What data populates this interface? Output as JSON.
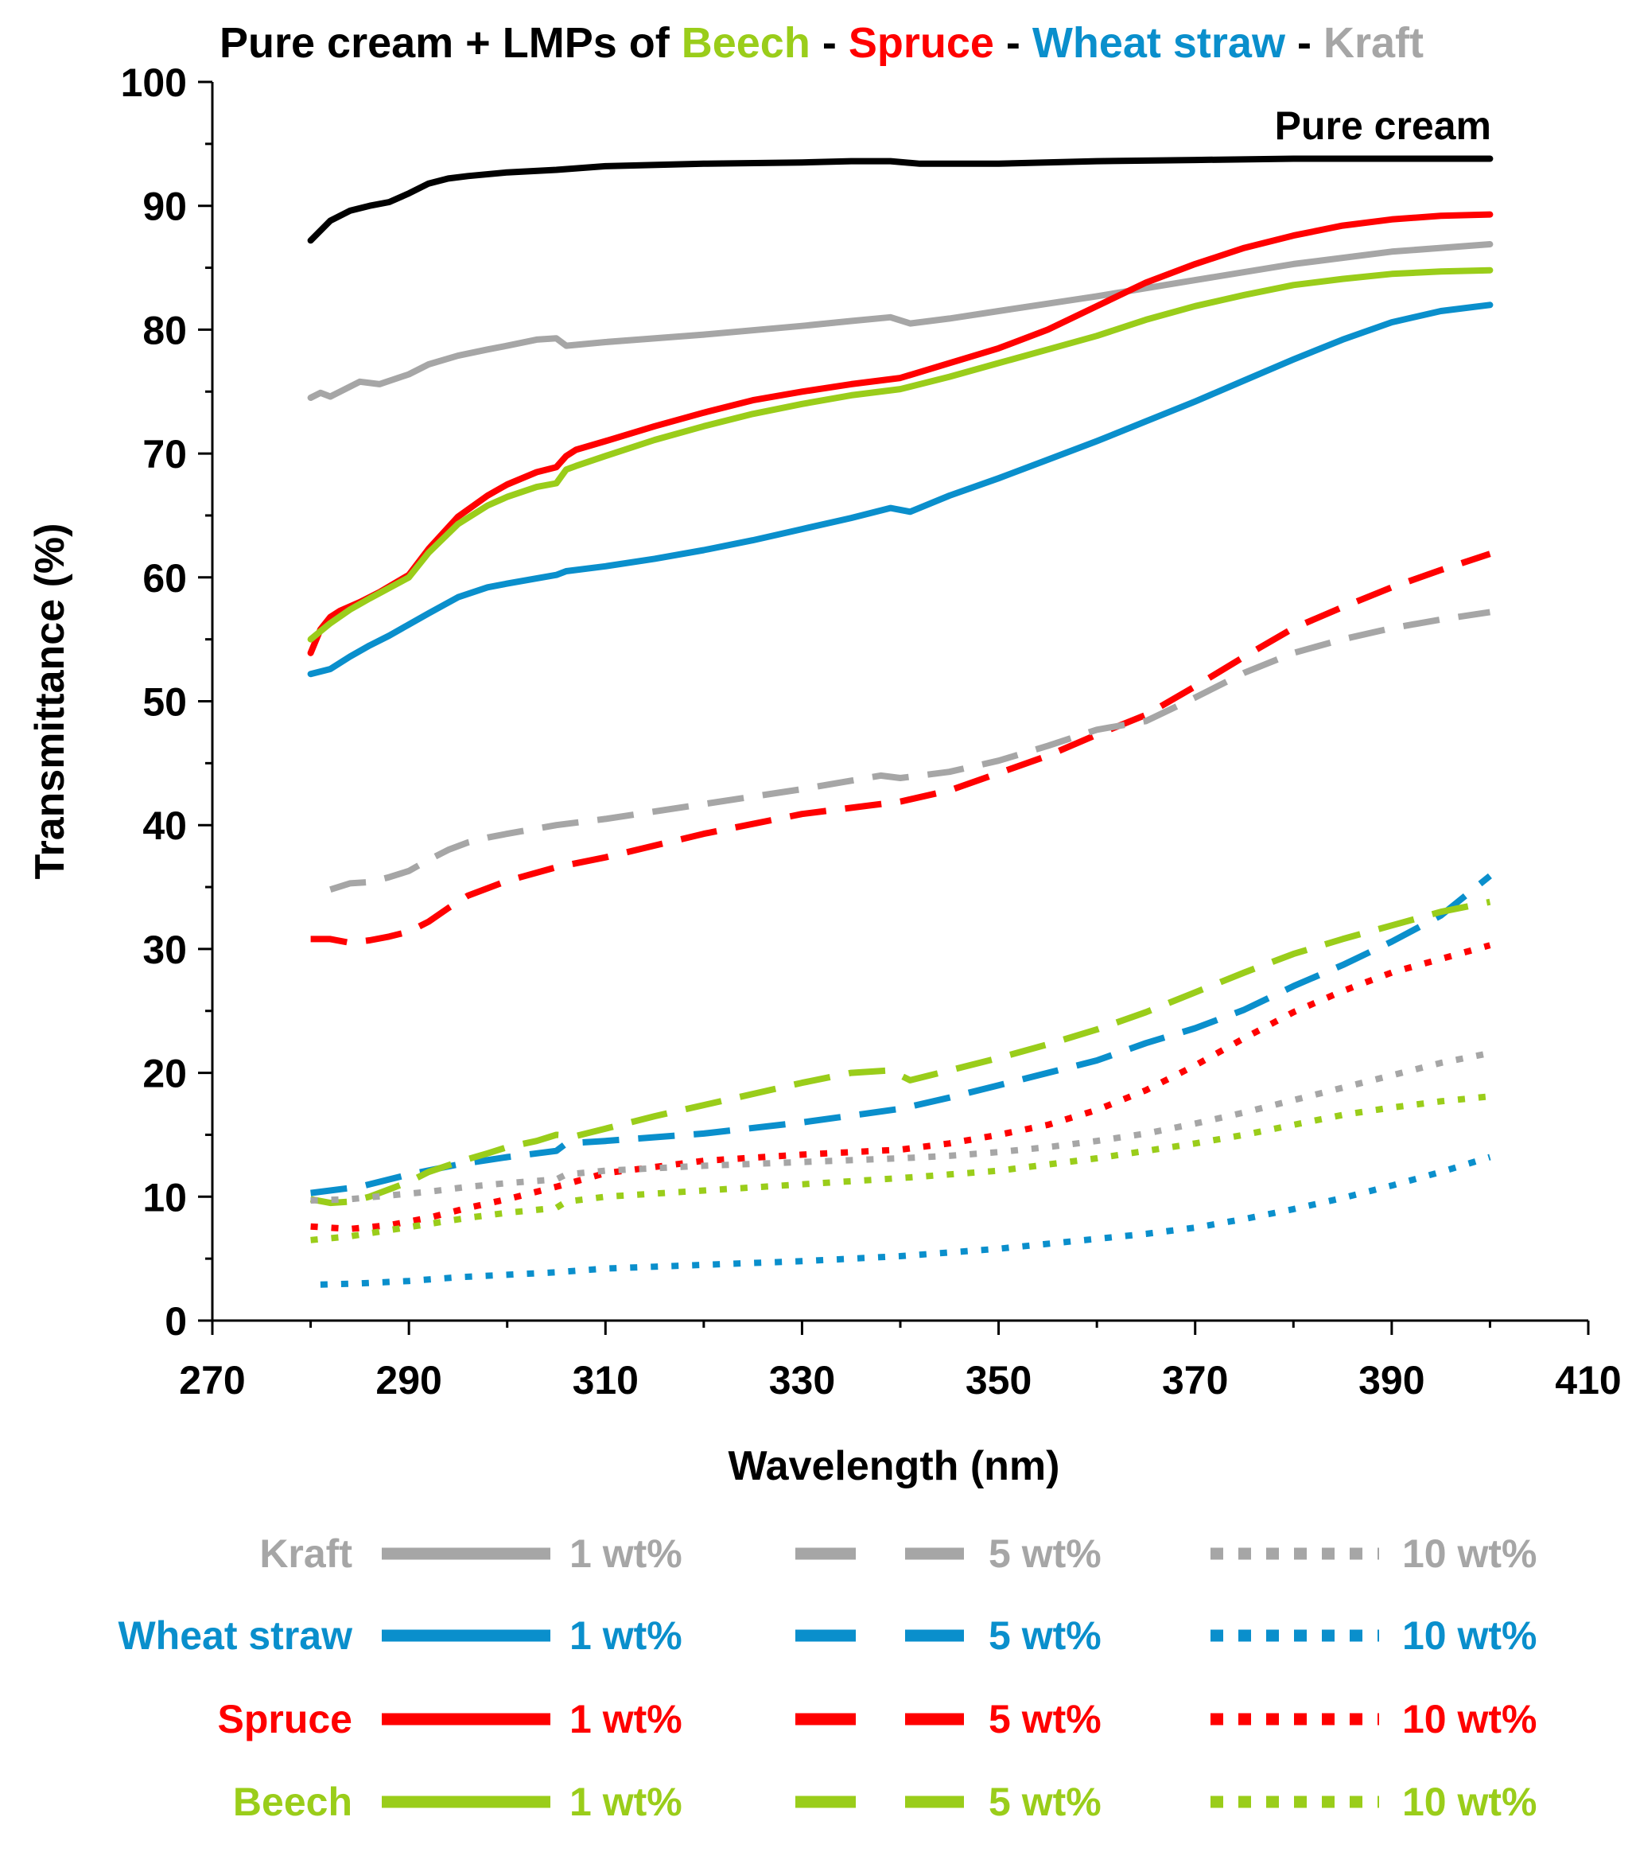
{
  "chart_data": {
    "type": "line",
    "title": {
      "prefix": "Pure cream + LMPs of",
      "sep": "-",
      "segments": [
        {
          "text": "Beech",
          "color": "#9ACD1A"
        },
        {
          "text": "Spruce",
          "color": "#FF0000"
        },
        {
          "text": "Wheat straw",
          "color": "#0A8FCC"
        },
        {
          "text": "Kraft",
          "color": "#A6A6A6"
        }
      ]
    },
    "xlabel": "Wavelength (nm)",
    "ylabel": "Transmittance (%)",
    "xlim": [
      270,
      410
    ],
    "ylim": [
      0,
      100
    ],
    "xticks": [
      270,
      290,
      310,
      330,
      350,
      370,
      390,
      410
    ],
    "yticks": [
      0,
      10,
      20,
      30,
      40,
      50,
      60,
      70,
      80,
      90,
      100
    ],
    "grid": false,
    "annotation": "Pure cream",
    "legend": {
      "placement": "bottom",
      "rows": [
        {
          "name": "Kraft",
          "color": "#A6A6A6"
        },
        {
          "name": "Wheat straw",
          "color": "#0A8FCC"
        },
        {
          "name": "Spruce",
          "color": "#FF0000"
        },
        {
          "name": "Beech",
          "color": "#9ACD1A"
        }
      ],
      "concentrations": [
        "1 wt%",
        "5 wt%",
        "10 wt%"
      ],
      "styles": [
        "solid",
        "dashed",
        "dotted"
      ]
    },
    "series": [
      {
        "name": "Pure cream",
        "color": "#000000",
        "style": "solid",
        "x": [
          280,
          282,
          284,
          286,
          288,
          290,
          292,
          294,
          296,
          300,
          305,
          310,
          320,
          330,
          335,
          339,
          342,
          350,
          360,
          370,
          380,
          390,
          400
        ],
        "y": [
          87.2,
          88.8,
          89.6,
          90.0,
          90.3,
          91.0,
          91.8,
          92.2,
          92.4,
          92.7,
          92.9,
          93.2,
          93.4,
          93.5,
          93.6,
          93.6,
          93.4,
          93.4,
          93.6,
          93.7,
          93.8,
          93.8,
          93.8
        ]
      },
      {
        "name": "Kraft 1 wt%",
        "color": "#A6A6A6",
        "style": "solid",
        "x": [
          280,
          281,
          282,
          283,
          285,
          287,
          290,
          292,
          295,
          298,
          300,
          303,
          305,
          306,
          310,
          320,
          330,
          335,
          339,
          341,
          345,
          350,
          360,
          370,
          380,
          390,
          400
        ],
        "y": [
          74.5,
          74.9,
          74.6,
          75.0,
          75.8,
          75.6,
          76.4,
          77.2,
          77.9,
          78.4,
          78.7,
          79.2,
          79.3,
          78.7,
          79.0,
          79.6,
          80.3,
          80.7,
          81.0,
          80.5,
          80.9,
          81.5,
          82.7,
          84.0,
          85.3,
          86.3,
          86.9
        ]
      },
      {
        "name": "Spruce 1 wt%",
        "color": "#FF0000",
        "style": "solid",
        "x": [
          280,
          281,
          282,
          283,
          285,
          287,
          290,
          292,
          295,
          298,
          300,
          303,
          305,
          306,
          307,
          310,
          315,
          320,
          325,
          330,
          335,
          340,
          345,
          350,
          355,
          360,
          365,
          370,
          375,
          380,
          385,
          390,
          395,
          400
        ],
        "y": [
          53.9,
          55.8,
          56.8,
          57.3,
          58.0,
          58.8,
          60.2,
          62.3,
          64.9,
          66.6,
          67.5,
          68.5,
          68.9,
          69.8,
          70.3,
          71.0,
          72.2,
          73.3,
          74.3,
          75.0,
          75.6,
          76.1,
          77.3,
          78.5,
          80.0,
          81.9,
          83.8,
          85.3,
          86.6,
          87.6,
          88.4,
          88.9,
          89.2,
          89.3
        ]
      },
      {
        "name": "Beech 1 wt%",
        "color": "#9ACD1A",
        "style": "solid",
        "x": [
          280,
          282,
          284,
          286,
          290,
          292,
          295,
          298,
          300,
          303,
          305,
          306,
          307,
          310,
          315,
          320,
          325,
          330,
          335,
          340,
          345,
          350,
          355,
          360,
          365,
          370,
          375,
          380,
          385,
          390,
          395,
          400
        ],
        "y": [
          55.0,
          56.3,
          57.4,
          58.3,
          60.0,
          62.0,
          64.3,
          65.8,
          66.5,
          67.3,
          67.6,
          68.7,
          69.0,
          69.8,
          71.1,
          72.2,
          73.2,
          74.0,
          74.7,
          75.2,
          76.2,
          77.3,
          78.4,
          79.5,
          80.8,
          81.9,
          82.8,
          83.6,
          84.1,
          84.5,
          84.7,
          84.8
        ]
      },
      {
        "name": "Wheat straw 1 wt%",
        "color": "#0A8FCC",
        "style": "solid",
        "x": [
          280,
          282,
          284,
          286,
          288,
          290,
          292,
          295,
          298,
          300,
          305,
          306,
          310,
          315,
          320,
          325,
          330,
          335,
          339,
          341,
          345,
          350,
          355,
          360,
          365,
          370,
          375,
          380,
          385,
          390,
          395,
          400
        ],
        "y": [
          52.2,
          52.6,
          53.6,
          54.5,
          55.3,
          56.2,
          57.1,
          58.4,
          59.2,
          59.5,
          60.2,
          60.5,
          60.9,
          61.5,
          62.2,
          63.0,
          63.9,
          64.8,
          65.6,
          65.3,
          66.6,
          68.0,
          69.5,
          71.0,
          72.6,
          74.2,
          75.9,
          77.6,
          79.2,
          80.6,
          81.5,
          82.0
        ]
      },
      {
        "name": "Spruce 5 wt%",
        "color": "#FF0000",
        "style": "dashed",
        "x": [
          280,
          282,
          284,
          286,
          288,
          290,
          292,
          294,
          296,
          300,
          305,
          310,
          320,
          330,
          340,
          345,
          350,
          355,
          360,
          365,
          370,
          375,
          380,
          385,
          390,
          395,
          400
        ],
        "y": [
          30.8,
          30.8,
          30.5,
          30.7,
          31.0,
          31.4,
          32.2,
          33.3,
          34.3,
          35.5,
          36.6,
          37.4,
          39.3,
          40.9,
          41.9,
          42.8,
          44.2,
          45.6,
          47.3,
          48.9,
          51.2,
          53.6,
          55.9,
          57.6,
          59.2,
          60.6,
          61.9
        ]
      },
      {
        "name": "Kraft 5 wt%",
        "color": "#A6A6A6",
        "style": "dashed",
        "x": [
          282,
          284,
          286,
          288,
          290,
          292,
          294,
          296,
          298,
          300,
          305,
          310,
          320,
          330,
          338,
          340,
          345,
          350,
          355,
          360,
          365,
          370,
          375,
          380,
          385,
          390,
          395,
          400
        ],
        "y": [
          34.8,
          35.3,
          35.4,
          35.8,
          36.3,
          37.2,
          38.0,
          38.6,
          39.0,
          39.3,
          40.0,
          40.5,
          41.7,
          42.9,
          44.0,
          43.8,
          44.3,
          45.2,
          46.4,
          47.7,
          48.4,
          50.3,
          52.3,
          53.9,
          55.0,
          55.9,
          56.6,
          57.2
        ]
      },
      {
        "name": "Wheat straw 5 wt%",
        "color": "#0A8FCC",
        "style": "dashed",
        "x": [
          280,
          285,
          290,
          295,
          300,
          305,
          306,
          310,
          320,
          330,
          340,
          345,
          350,
          355,
          360,
          365,
          370,
          375,
          380,
          385,
          390,
          395,
          400
        ],
        "y": [
          10.3,
          10.8,
          11.8,
          12.6,
          13.2,
          13.7,
          14.3,
          14.5,
          15.1,
          16.0,
          17.1,
          18.0,
          19.0,
          20.0,
          21.0,
          22.4,
          23.6,
          25.1,
          27.0,
          28.7,
          30.6,
          32.7,
          35.9
        ]
      },
      {
        "name": "Beech 5 wt%",
        "color": "#9ACD1A",
        "style": "dashed",
        "x": [
          280,
          282,
          284,
          286,
          288,
          290,
          292,
          295,
          298,
          300,
          303,
          305,
          307,
          310,
          315,
          320,
          325,
          330,
          335,
          339,
          341,
          345,
          350,
          355,
          360,
          365,
          370,
          375,
          380,
          385,
          390,
          395,
          400
        ],
        "y": [
          9.8,
          9.5,
          9.6,
          10.0,
          10.6,
          11.2,
          12.0,
          12.8,
          13.5,
          14.0,
          14.5,
          15.0,
          14.9,
          15.5,
          16.5,
          17.4,
          18.3,
          19.2,
          20.0,
          20.2,
          19.4,
          20.2,
          21.2,
          22.3,
          23.5,
          24.9,
          26.5,
          28.1,
          29.6,
          30.8,
          31.9,
          33.0,
          33.8
        ]
      },
      {
        "name": "Spruce 10 wt%",
        "color": "#FF0000",
        "style": "dotted",
        "x": [
          280,
          284,
          288,
          292,
          296,
          300,
          305,
          310,
          320,
          330,
          340,
          345,
          350,
          355,
          360,
          365,
          370,
          375,
          380,
          385,
          390,
          395,
          400
        ],
        "y": [
          7.6,
          7.4,
          7.7,
          8.3,
          9.1,
          9.8,
          10.8,
          11.9,
          12.9,
          13.4,
          13.8,
          14.3,
          15.0,
          15.8,
          17.0,
          18.6,
          20.6,
          22.8,
          24.9,
          26.6,
          28.1,
          29.2,
          30.3
        ]
      },
      {
        "name": "Kraft 10 wt%",
        "color": "#A6A6A6",
        "style": "dotted",
        "x": [
          280,
          284,
          288,
          292,
          296,
          300,
          305,
          306,
          310,
          320,
          330,
          340,
          345,
          350,
          355,
          360,
          365,
          370,
          375,
          380,
          385,
          390,
          395,
          400
        ],
        "y": [
          9.7,
          9.8,
          10.1,
          10.4,
          10.8,
          11.1,
          11.4,
          11.8,
          12.1,
          12.5,
          12.8,
          13.1,
          13.3,
          13.6,
          14.0,
          14.5,
          15.1,
          15.9,
          16.8,
          17.8,
          18.8,
          19.8,
          20.8,
          21.6
        ]
      },
      {
        "name": "Beech 10 wt%",
        "color": "#9ACD1A",
        "style": "dotted",
        "x": [
          280,
          284,
          288,
          292,
          296,
          300,
          305,
          306,
          310,
          320,
          330,
          340,
          345,
          350,
          355,
          360,
          365,
          370,
          375,
          380,
          385,
          390,
          395,
          400
        ],
        "y": [
          6.5,
          6.8,
          7.3,
          7.8,
          8.3,
          8.7,
          9.1,
          9.6,
          10.0,
          10.5,
          11.0,
          11.5,
          11.8,
          12.1,
          12.6,
          13.1,
          13.7,
          14.3,
          15.0,
          15.8,
          16.6,
          17.2,
          17.7,
          18.1
        ]
      },
      {
        "name": "Wheat straw 10 wt%",
        "color": "#0A8FCC",
        "style": "dotted",
        "x": [
          281,
          285,
          290,
          295,
          300,
          305,
          310,
          320,
          330,
          340,
          345,
          350,
          355,
          360,
          365,
          370,
          375,
          380,
          385,
          390,
          395,
          400
        ],
        "y": [
          2.9,
          3.0,
          3.2,
          3.5,
          3.7,
          3.9,
          4.2,
          4.5,
          4.8,
          5.2,
          5.5,
          5.8,
          6.2,
          6.6,
          7.0,
          7.5,
          8.2,
          9.0,
          9.9,
          10.9,
          12.0,
          13.2
        ]
      }
    ]
  }
}
